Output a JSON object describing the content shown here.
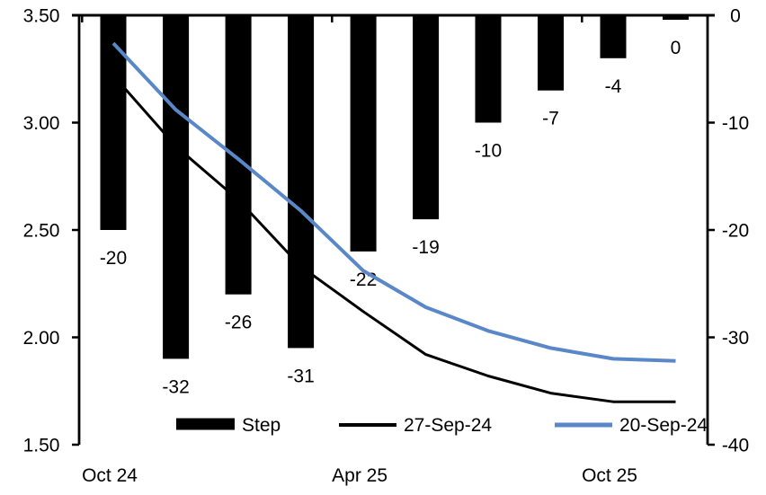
{
  "chart_data": {
    "type": "combo-bar-line",
    "title": "",
    "n_categories": 10,
    "x_axis": {
      "labels": [
        {
          "text": "Oct 24",
          "index": 0
        },
        {
          "text": "Apr 25",
          "index": 4
        },
        {
          "text": "Oct 25",
          "index": 8
        }
      ],
      "tick_boundary_indices": [
        0,
        4,
        8
      ]
    },
    "left_axis": {
      "min": 1.5,
      "max": 3.5,
      "tick_labels": [
        "3.50",
        "3.00",
        "2.50",
        "2.00",
        "1.50"
      ]
    },
    "right_axis": {
      "min": -40,
      "max": 0,
      "tick_labels": [
        "0",
        "-10",
        "-20",
        "-30",
        "-40"
      ]
    },
    "bars": {
      "name": "Step",
      "axis": "right",
      "color": "#000000",
      "values": [
        -20,
        -32,
        -26,
        -31,
        -22,
        -19,
        -10,
        -7,
        -4,
        0
      ],
      "data_labels": [
        "-20",
        "-32",
        "-26",
        "-31",
        "-22",
        "-19",
        "-10",
        "-7",
        "-4",
        "0"
      ]
    },
    "series": [
      {
        "name": "27-Sep-24",
        "axis": "left",
        "color": "#000000",
        "stroke_width": 3,
        "values": [
          3.22,
          2.89,
          2.64,
          2.33,
          2.12,
          1.92,
          1.82,
          1.74,
          1.7,
          1.7
        ]
      },
      {
        "name": "20-Sep-24",
        "axis": "left",
        "color": "#5a87c8",
        "stroke_width": 4,
        "values": [
          3.37,
          3.06,
          2.83,
          2.59,
          2.31,
          2.14,
          2.03,
          1.95,
          1.9,
          1.89
        ]
      }
    ],
    "legend": {
      "position": "bottom-inside",
      "items": [
        "Step",
        "27-Sep-24",
        "20-Sep-24"
      ]
    }
  }
}
